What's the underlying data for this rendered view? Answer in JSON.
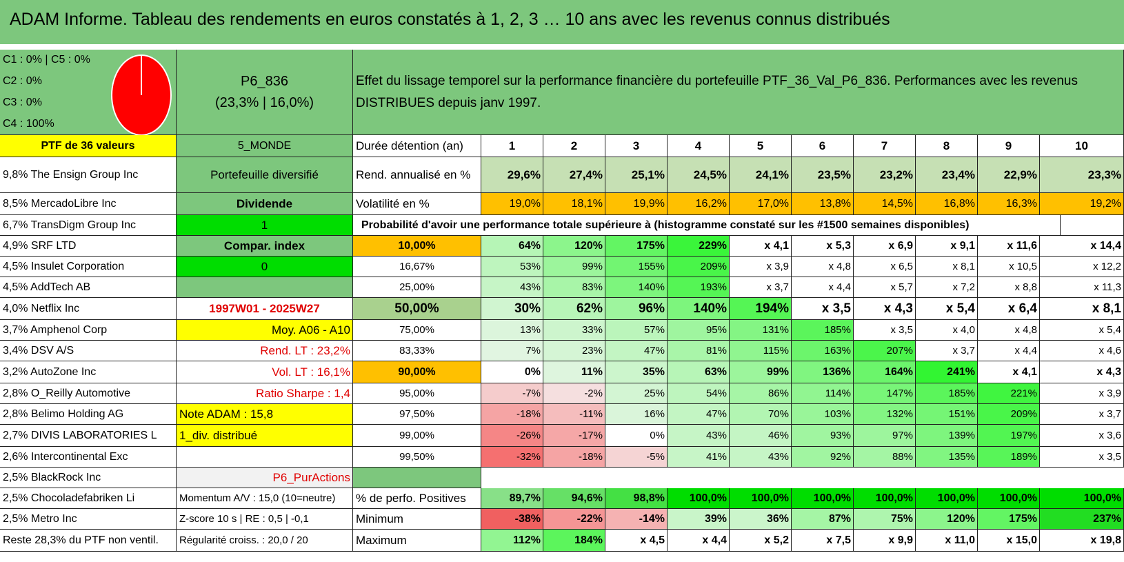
{
  "title": "ADAM Informe. Tableau des rendements en euros constatés à 1, 2, 3 … 10 ans avec les revenus connus distribués",
  "allocation": {
    "legend": [
      "C1 : 0% | C5 : 0%",
      "C2 : 0%",
      "C3 : 0%",
      "C4 : 100%"
    ],
    "pie_color": "#ff0000"
  },
  "portfolio": {
    "code": "P6_836",
    "summary": "(23,3% | 16,0%)",
    "description_line1": "Effet du lissage temporel sur la performance financière du portefeuille PTF_36_Val_P6_836. Performances avec les revenus",
    "description_line2": "DISTRIBUES depuis janv 1997.",
    "count_label": "PTF de 36 valeurs",
    "zone": "5_MONDE"
  },
  "years": [
    "1",
    "2",
    "3",
    "4",
    "5",
    "6",
    "7",
    "8",
    "9",
    "10"
  ],
  "header_label": "Durée détention (an)",
  "rend_label": "Rend. annualisé en %",
  "rend_values": [
    "29,6%",
    "27,4%",
    "25,1%",
    "24,5%",
    "24,1%",
    "23,5%",
    "23,2%",
    "23,4%",
    "22,9%",
    "23,3%"
  ],
  "vol_label": "Volatilité en %",
  "vol_values": [
    "19,0%",
    "18,1%",
    "19,9%",
    "16,2%",
    "17,0%",
    "13,8%",
    "14,5%",
    "16,8%",
    "16,3%",
    "19,2%"
  ],
  "prob_title": "Probabilité d'avoir une performance totale supérieure à (histogramme constaté sur les #1500 semaines disponibles)",
  "holdings": [
    "9,8% The Ensign Group Inc",
    "8,5% MercadoLibre Inc",
    "6,7% TransDigm Group Inc",
    "4,9% SRF LTD",
    "4,5% Insulet Corporation",
    "4,5% AddTech AB",
    "4,0% Netflix Inc",
    "3,7% Amphenol Corp",
    "3,4% DSV A/S",
    "3,2% AutoZone Inc",
    "2,8% O_Reilly Automotive",
    "2,8% Belimo Holding AG",
    "2,7% DIVIS LABORATORIES L",
    "2,6% Intercontinental Exc",
    "2,5% BlackRock Inc",
    "2,5% Chocoladefabriken Li",
    "2,5% Metro Inc",
    "Reste 28,3% du PTF non ventil."
  ],
  "info": {
    "diversified": "Portefeuille diversifié",
    "dividend": "Dividende",
    "one": "1",
    "compare": "Compar. index",
    "zero": "0",
    "empty": "",
    "period": "1997W01 - 2025W27",
    "moy": "Moy. A06 - A10",
    "rend_lt": "Rend. LT : 23,2%",
    "vol_lt": "Vol. LT : 16,1%",
    "sharpe": "Ratio Sharpe : 1,4",
    "note": "Note ADAM : 15,8",
    "div": "1_div. distribué",
    "blank": "",
    "style": "P6_PurActions",
    "momentum": "Momentum A/V : 15,0 (10=neutre)",
    "zscore": "Z-score 10 s | RE : 0,5 | -0,1",
    "regularity": "Régularité croiss. : 20,0 / 20"
  },
  "probabilities": [
    {
      "p": "10,00%",
      "v": [
        "64%",
        "120%",
        "175%",
        "229%",
        "x 4,1",
        "x 5,3",
        "x 6,9",
        "x 9,1",
        "x 11,6",
        "x 14,4"
      ]
    },
    {
      "p": "16,67%",
      "v": [
        "53%",
        "99%",
        "155%",
        "209%",
        "x 3,9",
        "x 4,8",
        "x 6,5",
        "x 8,1",
        "x 10,5",
        "x 12,2"
      ]
    },
    {
      "p": "25,00%",
      "v": [
        "43%",
        "83%",
        "140%",
        "193%",
        "x 3,7",
        "x 4,4",
        "x 5,7",
        "x 7,2",
        "x 8,8",
        "x 11,3"
      ]
    },
    {
      "p": "50,00%",
      "v": [
        "30%",
        "62%",
        "96%",
        "140%",
        "194%",
        "x 3,5",
        "x 4,3",
        "x 5,4",
        "x 6,4",
        "x 8,1"
      ]
    },
    {
      "p": "75,00%",
      "v": [
        "13%",
        "33%",
        "57%",
        "95%",
        "131%",
        "185%",
        "x 3,5",
        "x 4,0",
        "x 4,8",
        "x 5,4"
      ]
    },
    {
      "p": "83,33%",
      "v": [
        "7%",
        "23%",
        "47%",
        "81%",
        "115%",
        "163%",
        "207%",
        "x 3,7",
        "x 4,4",
        "x 4,6"
      ]
    },
    {
      "p": "90,00%",
      "v": [
        "0%",
        "11%",
        "35%",
        "63%",
        "99%",
        "136%",
        "164%",
        "241%",
        "x 4,1",
        "x 4,3"
      ]
    },
    {
      "p": "95,00%",
      "v": [
        "-7%",
        "-2%",
        "25%",
        "54%",
        "86%",
        "114%",
        "147%",
        "185%",
        "221%",
        "x 3,9"
      ]
    },
    {
      "p": "97,50%",
      "v": [
        "-18%",
        "-11%",
        "16%",
        "47%",
        "70%",
        "103%",
        "132%",
        "151%",
        "209%",
        "x 3,7"
      ]
    },
    {
      "p": "99,00%",
      "v": [
        "-26%",
        "-17%",
        "0%",
        "43%",
        "46%",
        "93%",
        "97%",
        "139%",
        "197%",
        "x 3,6"
      ]
    },
    {
      "p": "99,50%",
      "v": [
        "-32%",
        "-18%",
        "-5%",
        "41%",
        "43%",
        "92%",
        "88%",
        "135%",
        "189%",
        "x 3,5"
      ]
    }
  ],
  "stats": [
    {
      "label": "% de perfo. Positives",
      "v": [
        "89,7%",
        "94,6%",
        "98,8%",
        "100,0%",
        "100,0%",
        "100,0%",
        "100,0%",
        "100,0%",
        "100,0%",
        "100,0%"
      ]
    },
    {
      "label": "Minimum",
      "v": [
        "-38%",
        "-22%",
        "-14%",
        "39%",
        "36%",
        "87%",
        "75%",
        "120%",
        "175%",
        "237%"
      ]
    },
    {
      "label": "Maximum",
      "v": [
        "112%",
        "184%",
        "x 4,5",
        "x 4,4",
        "x 5,2",
        "x 7,5",
        "x 9,9",
        "x 11,0",
        "x 15,0",
        "x 19,8"
      ]
    }
  ],
  "colors": {
    "header_green": "#7dc77d",
    "yellow": "#ffff00",
    "orange": "#ffc000",
    "bright_green": "#00dd00",
    "light_green": "#c6e0b4",
    "grey": "#f2f2f2"
  }
}
